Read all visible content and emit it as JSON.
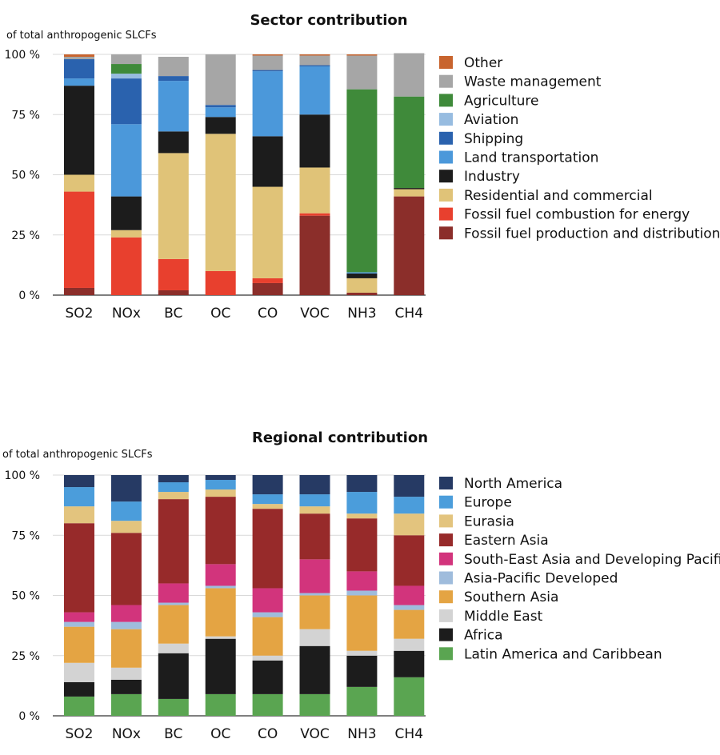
{
  "chart_data": [
    {
      "type": "bar",
      "stacked": true,
      "title": "Sector contribution",
      "ylabel": "of total anthropogenic SLCFs",
      "ylim": [
        0,
        100
      ],
      "yticks": [
        "0 %",
        "25 %",
        "50 %",
        "75 %",
        "100 %"
      ],
      "categories": [
        "SO2",
        "NOx",
        "BC",
        "OC",
        "CO",
        "VOC",
        "NH3",
        "CH4"
      ],
      "series": [
        {
          "name": "Fossil fuel production and distribution",
          "color": "#8B2E2A",
          "values": [
            3,
            0,
            2,
            0,
            5,
            33,
            1,
            41
          ]
        },
        {
          "name": "Fossil fuel combustion for energy",
          "color": "#E8402E",
          "values": [
            40,
            24,
            13,
            10,
            2,
            1,
            0,
            0
          ]
        },
        {
          "name": "Residential and commercial",
          "color": "#E0C378",
          "values": [
            7,
            3,
            44,
            57,
            38,
            19,
            6,
            3
          ]
        },
        {
          "name": "Industry",
          "color": "#1C1C1C",
          "values": [
            37,
            14,
            9,
            7,
            21,
            22,
            2,
            0.5
          ]
        },
        {
          "name": "Land transportation",
          "color": "#4B98DA",
          "values": [
            3,
            30,
            21,
            4,
            27,
            20,
            0.5,
            0
          ]
        },
        {
          "name": "Shipping",
          "color": "#2A62AE",
          "values": [
            8,
            19,
            2,
            1,
            0.5,
            0.5,
            0,
            0
          ]
        },
        {
          "name": "Aviation",
          "color": "#97BCE0",
          "values": [
            0,
            2,
            0,
            0,
            0,
            0,
            0,
            0
          ]
        },
        {
          "name": "Agriculture",
          "color": "#3F8A3A",
          "values": [
            0,
            4,
            0,
            0,
            0,
            0,
            76,
            38
          ]
        },
        {
          "name": "Waste management",
          "color": "#A6A6A6",
          "values": [
            1,
            4,
            8,
            21,
            6,
            4,
            14,
            18
          ]
        },
        {
          "name": "Other",
          "color": "#C8642E",
          "values": [
            1,
            0,
            0,
            0,
            0.5,
            0.5,
            0.5,
            0
          ]
        }
      ],
      "legend_order": [
        "Other",
        "Waste management",
        "Agriculture",
        "Aviation",
        "Shipping",
        "Land transportation",
        "Industry",
        "Residential and commercial",
        "Fossil fuel combustion for energy",
        "Fossil fuel production and distribution"
      ],
      "legend_placement": "right"
    },
    {
      "type": "bar",
      "stacked": true,
      "title": "Regional contribution",
      "ylabel": "of total anthropogenic SLCFs",
      "ylim": [
        0,
        100
      ],
      "yticks": [
        "0 %",
        "25 %",
        "50 %",
        "75 %",
        "100 %"
      ],
      "categories": [
        "SO2",
        "NOx",
        "BC",
        "OC",
        "CO",
        "VOC",
        "NH3",
        "CH4"
      ],
      "series": [
        {
          "name": "Latin America and Caribbean",
          "color": "#5AA551",
          "values": [
            8,
            9,
            7,
            9,
            9,
            9,
            12,
            16
          ]
        },
        {
          "name": "Africa",
          "color": "#1C1C1C",
          "values": [
            6,
            6,
            19,
            23,
            14,
            20,
            13,
            11
          ]
        },
        {
          "name": "Middle East",
          "color": "#D3D3D3",
          "values": [
            8,
            5,
            4,
            1,
            2,
            7,
            2,
            5
          ]
        },
        {
          "name": "Southern Asia",
          "color": "#E4A443",
          "values": [
            15,
            16,
            16,
            20,
            16,
            14,
            23,
            12
          ]
        },
        {
          "name": "Asia-Pacific Developed",
          "color": "#9FBCDC",
          "values": [
            2,
            3,
            1,
            1,
            2,
            1,
            2,
            2
          ]
        },
        {
          "name": "South-East Asia and Developing Pacific",
          "color": "#D2347C",
          "values": [
            4,
            7,
            8,
            9,
            10,
            14,
            8,
            8
          ]
        },
        {
          "name": "Eastern Asia",
          "color": "#972A2A",
          "values": [
            37,
            30,
            35,
            28,
            33,
            19,
            22,
            21
          ]
        },
        {
          "name": "Eurasia",
          "color": "#E3C47E",
          "values": [
            7,
            5,
            3,
            3,
            2,
            3,
            2,
            9
          ]
        },
        {
          "name": "Europe",
          "color": "#4B9DDB",
          "values": [
            8,
            8,
            4,
            4,
            4,
            5,
            9,
            7
          ]
        },
        {
          "name": "North America",
          "color": "#263A64",
          "values": [
            5,
            11,
            3,
            2,
            8,
            8,
            7,
            9
          ]
        }
      ],
      "legend_order": [
        "North America",
        "Europe",
        "Eurasia",
        "Eastern Asia",
        "South-East Asia and Developing Pacific",
        "Asia-Pacific Developed",
        "Southern Asia",
        "Middle East",
        "Africa",
        "Latin America and Caribbean"
      ],
      "legend_placement": "right"
    }
  ]
}
